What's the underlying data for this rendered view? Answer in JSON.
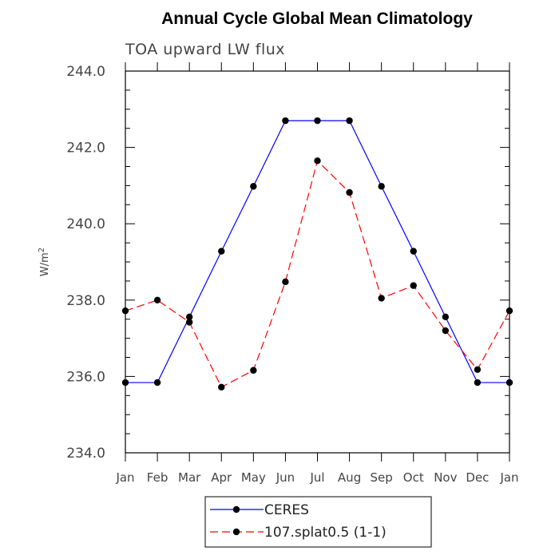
{
  "chart_data": {
    "type": "line",
    "title": "Annual Cycle Global Mean Climatology",
    "subtitle": "TOA upward LW flux",
    "ylabel": "W/m",
    "ylabel_superscript": "2",
    "ylim": [
      234.0,
      244.0
    ],
    "yticks": [
      "234.0",
      "236.0",
      "238.0",
      "240.0",
      "242.0",
      "244.0"
    ],
    "categories": [
      "Jan",
      "Feb",
      "Mar",
      "Apr",
      "May",
      "Jun",
      "Jul",
      "Aug",
      "Sep",
      "Oct",
      "Nov",
      "Dec",
      "Jan"
    ],
    "series": [
      {
        "name": "CERES",
        "color": "#0000ff",
        "dash": "solid",
        "values": [
          235.84,
          235.84,
          237.56,
          239.28,
          240.98,
          242.7,
          242.7,
          242.7,
          240.98,
          239.28,
          237.56,
          235.84,
          235.84
        ]
      },
      {
        "name": "107.splat0.5 (1-1)",
        "color": "#ff0000",
        "dash": "dashed",
        "values": [
          237.72,
          238.0,
          237.42,
          235.72,
          236.16,
          238.48,
          241.65,
          240.82,
          238.05,
          238.38,
          237.2,
          236.18,
          237.72
        ]
      }
    ],
    "grid": false,
    "legend_position": "bottom-center"
  }
}
